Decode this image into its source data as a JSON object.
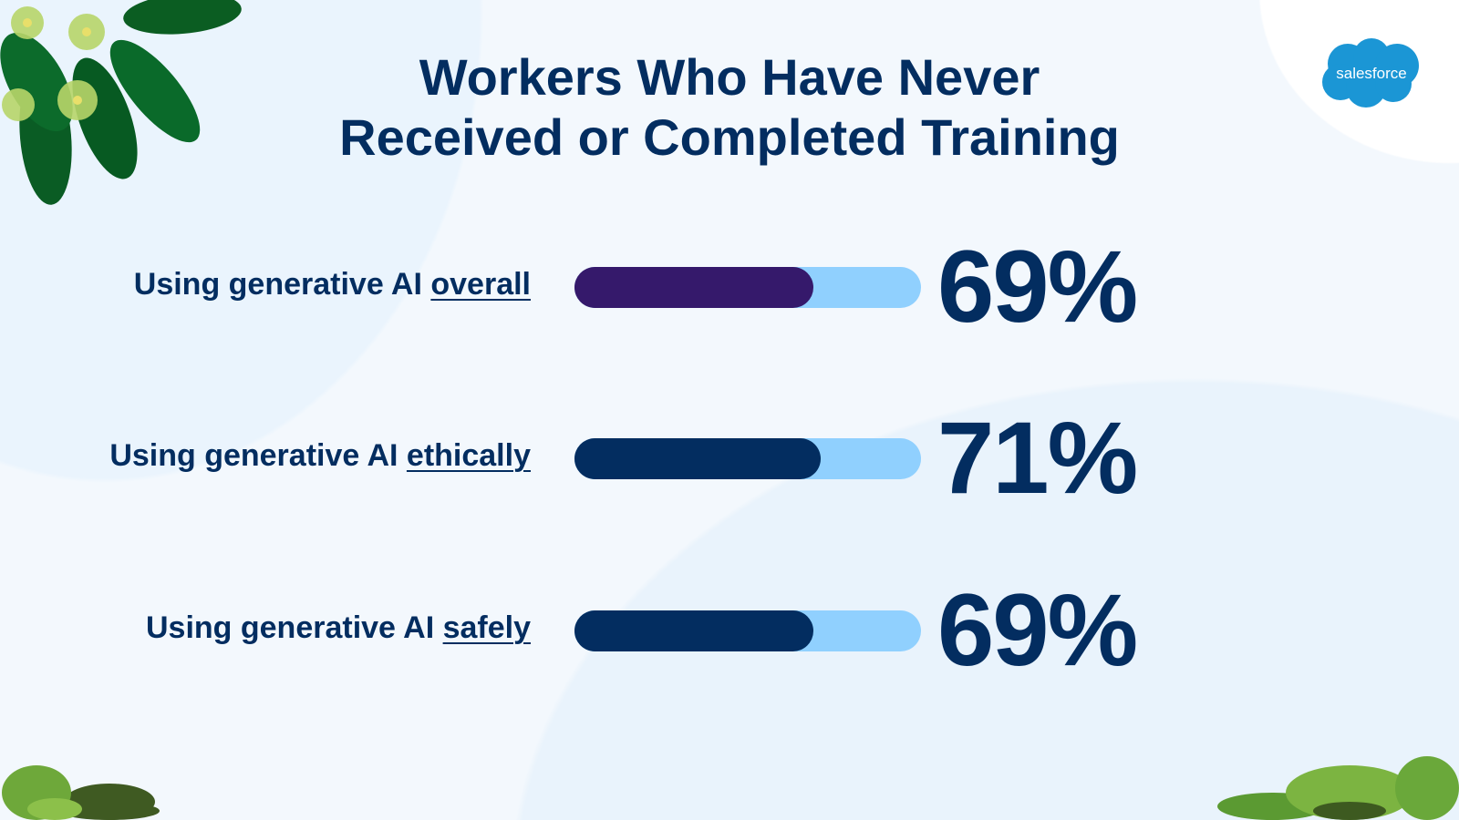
{
  "brand": {
    "logo_text": "salesforce",
    "logo_color": "#1b96d5"
  },
  "chart_data": {
    "type": "bar",
    "orientation": "horizontal",
    "title_lines": [
      "Workers Who Have Never",
      "Received or Completed Training"
    ],
    "unit": "%",
    "xlim": [
      0,
      100
    ],
    "rows": [
      {
        "label_prefix": "Using generative AI ",
        "label_emphasis": "overall",
        "value": 69,
        "value_label": "69%",
        "fill_color": "#35196b"
      },
      {
        "label_prefix": "Using generative AI ",
        "label_emphasis": "ethically",
        "value": 71,
        "value_label": "71%",
        "fill_color": "#032d60"
      },
      {
        "label_prefix": "Using generative AI ",
        "label_emphasis": "safely",
        "value": 69,
        "value_label": "69%",
        "fill_color": "#032d60"
      }
    ],
    "track_color": "#90d0fe",
    "text_color": "#032d60"
  }
}
